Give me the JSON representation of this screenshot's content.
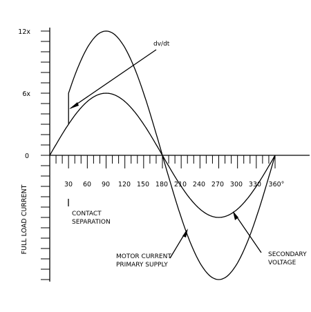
{
  "chart_data": {
    "type": "line",
    "y_axis_label": "FULL LOAD CURRENT",
    "y_ticks": [
      {
        "value": 12,
        "label": "12x"
      },
      {
        "value": 6,
        "label": "6x"
      },
      {
        "value": 0,
        "label": "0"
      }
    ],
    "xlim": [
      0,
      360
    ],
    "ylim": [
      -12,
      12
    ],
    "x_tick_labels": [
      {
        "value": 30,
        "label": "30"
      },
      {
        "value": 60,
        "label": "60"
      },
      {
        "value": 90,
        "label": "90"
      },
      {
        "value": 120,
        "label": "120"
      },
      {
        "value": 150,
        "label": "150"
      },
      {
        "value": 180,
        "label": "180"
      },
      {
        "value": 210,
        "label": "210"
      },
      {
        "value": 240,
        "label": "240"
      },
      {
        "value": 270,
        "label": "270"
      },
      {
        "value": 300,
        "label": "300"
      },
      {
        "value": 330,
        "label": "330"
      },
      {
        "value": 360,
        "label": "360°"
      }
    ],
    "series": [
      {
        "name": "MOTOR CURRENT PRIMARY SUPPLY",
        "shape": "sine",
        "amplitude": 12,
        "x_start": 30,
        "y_at_start": 3,
        "jump_to_at_start": 6
      },
      {
        "name": "SECONDARY VOLTAGE",
        "shape": "sine",
        "amplitude": 6,
        "x_start": 0
      }
    ],
    "annotations": {
      "dvdt": "dv/dt",
      "contact_line1": "CONTACT",
      "contact_line2": "SEPARATION",
      "motor_line1": "MOTOR CURRENT",
      "motor_line2": "PRIMARY SUPPLY",
      "secondary_line1": "SECONDARY",
      "secondary_line2": "VOLTAGE"
    }
  }
}
